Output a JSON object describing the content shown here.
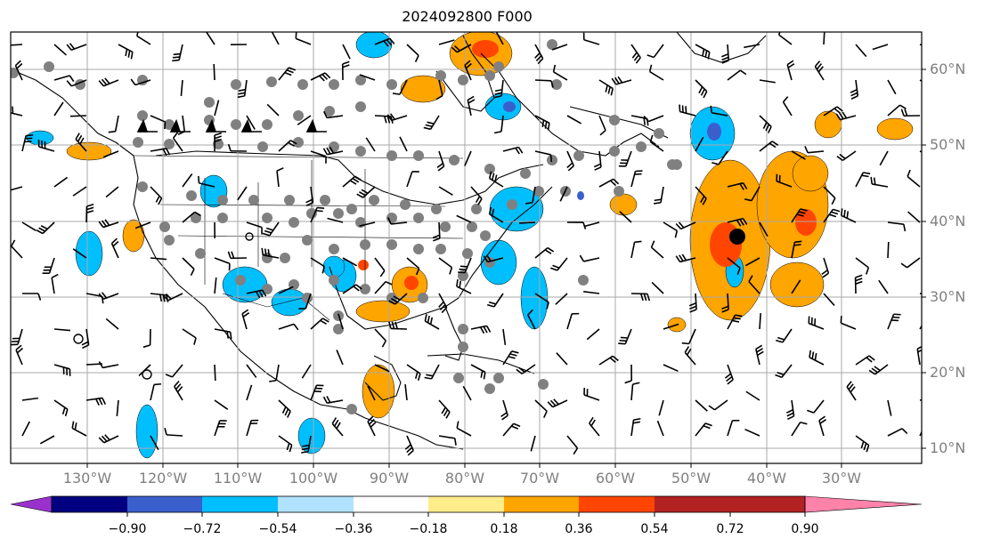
{
  "title": "2024092800 F000",
  "lat_labels": [
    "60°N",
    "50°N",
    "40°N",
    "30°N",
    "20°N",
    "10°N"
  ],
  "lon_labels": [
    "130°W",
    "120°W",
    "110°W",
    "100°W",
    "90°W",
    "80°W",
    "70°W",
    "60°W",
    "50°W",
    "40°W",
    "30°W"
  ],
  "colorbar": {
    "ticks": [
      "−0.90",
      "−0.72",
      "−0.54",
      "−0.36",
      "−0.18",
      "0.18",
      "0.36",
      "0.54",
      "0.72",
      "0.90"
    ],
    "colors": [
      "#9932cc",
      "#000080",
      "#3a5fcd",
      "#00bfff",
      "#b0e2ff",
      "#ffffff",
      "#ffec8b",
      "#ffa500",
      "#ff4500",
      "#b22222",
      "#ff82ab"
    ]
  },
  "colors": {
    "negative_fill": "#00bfff",
    "positive_fill": "#ffa500",
    "strong_positive_fill": "#ff4500",
    "strong_negative_fill": "#3a5fcd",
    "station_dot": "#808080",
    "grid": "#a9a9a9"
  }
}
